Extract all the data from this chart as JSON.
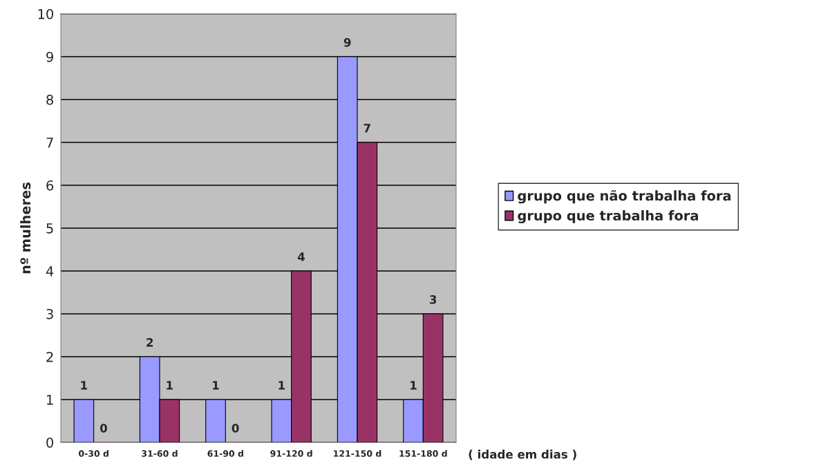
{
  "chart_data": {
    "type": "bar",
    "ylabel": "nº mulheres",
    "xlabel": "( idade em dias )",
    "categories": [
      "0-30 d",
      "31-60 d",
      "61-90 d",
      "91-120 d",
      "121-150 d",
      "151-180 d"
    ],
    "series": [
      {
        "name": "grupo que não trabalha fora",
        "color": "#9999ff",
        "values": [
          1,
          2,
          1,
          1,
          9,
          1
        ]
      },
      {
        "name": "grupo que trabalha fora",
        "color": "#993366",
        "values": [
          0,
          1,
          0,
          4,
          7,
          3
        ]
      }
    ],
    "ylim": [
      0,
      10
    ],
    "yticks": [
      0,
      1,
      2,
      3,
      4,
      5,
      6,
      7,
      8,
      9,
      10
    ],
    "grid": "y",
    "legend": "right",
    "data_labels": true
  }
}
